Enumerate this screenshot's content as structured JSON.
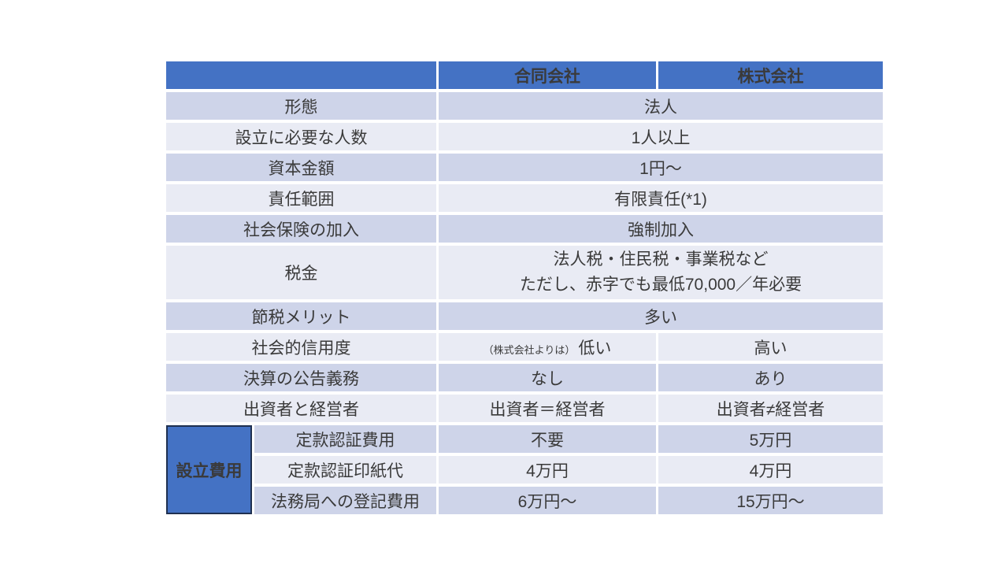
{
  "slide": {
    "background": "#ffffff"
  },
  "colors": {
    "header_blue": "#4472C4",
    "band_dark": "#CED4E9",
    "band_light": "#E9EBF4",
    "text": "#3A3A3A",
    "header_text": "#FFFFFF",
    "group_box_fill": "#4472C4",
    "group_box_border": "#1F3050"
  },
  "table": {
    "header": {
      "corner": "",
      "columns": [
        "合同会社",
        "株式会社"
      ]
    },
    "group_label": "設立費用",
    "rows": [
      {
        "band": "dark",
        "label": "形態",
        "span_label": 2,
        "cells": [
          {
            "text": "法人",
            "colspan": 2
          }
        ]
      },
      {
        "band": "light",
        "label": "設立に必要な人数",
        "span_label": 2,
        "cells": [
          {
            "text": "1人以上",
            "colspan": 2
          }
        ]
      },
      {
        "band": "dark",
        "label": "資本金額",
        "span_label": 2,
        "cells": [
          {
            "text": "1円〜",
            "colspan": 2
          }
        ]
      },
      {
        "band": "light",
        "label": "責任範囲",
        "span_label": 2,
        "cells": [
          {
            "text": "有限責任(*1)",
            "colspan": 2
          }
        ]
      },
      {
        "band": "dark",
        "label": "社会保険の加入",
        "span_label": 2,
        "cells": [
          {
            "text": "強制加入",
            "colspan": 2
          }
        ]
      },
      {
        "band": "light",
        "label": "税金",
        "span_label": 2,
        "tall": true,
        "cells": [
          {
            "lines": [
              "法人税・住民税・事業税など",
              "ただし、赤字でも最低70,000／年必要"
            ],
            "colspan": 2
          }
        ]
      },
      {
        "band": "dark",
        "label": "節税メリット",
        "span_label": 2,
        "cells": [
          {
            "text": "多い",
            "colspan": 2
          }
        ]
      },
      {
        "band": "light",
        "label": "社会的信用度",
        "span_label": 2,
        "cells": [
          {
            "small_prefix": "（株式会社よりは）",
            "text": "低い"
          },
          {
            "text": "高い"
          }
        ]
      },
      {
        "band": "dark",
        "label": "決算の公告義務",
        "span_label": 2,
        "cells": [
          {
            "text": "なし"
          },
          {
            "text": "あり"
          }
        ]
      },
      {
        "band": "light",
        "label": "出資者と経営者",
        "span_label": 2,
        "cells": [
          {
            "text": "出資者＝経営者"
          },
          {
            "text": "出資者≠経営者"
          }
        ]
      },
      {
        "band": "dark",
        "group": {
          "text": "設立費用",
          "rowspan": 3
        },
        "label": "定款認証費用",
        "cells": [
          {
            "text": "不要"
          },
          {
            "text": "5万円"
          }
        ]
      },
      {
        "band": "light",
        "label": "定款認証印紙代",
        "cells": [
          {
            "text": "4万円"
          },
          {
            "text": "4万円"
          }
        ]
      },
      {
        "band": "dark",
        "label": "法務局への登記費用",
        "cells": [
          {
            "text": "6万円〜"
          },
          {
            "text": "15万円〜"
          }
        ]
      }
    ]
  }
}
